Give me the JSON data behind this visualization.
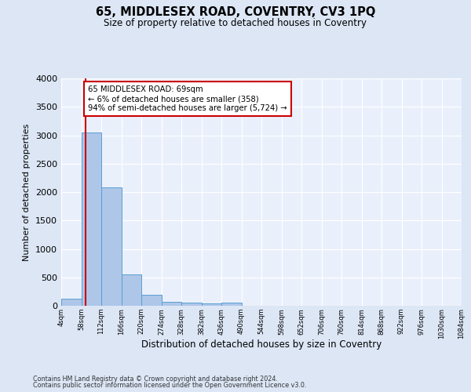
{
  "title": "65, MIDDLESEX ROAD, COVENTRY, CV3 1PQ",
  "subtitle": "Size of property relative to detached houses in Coventry",
  "xlabel": "Distribution of detached houses by size in Coventry",
  "ylabel": "Number of detached properties",
  "footer_line1": "Contains HM Land Registry data © Crown copyright and database right 2024.",
  "footer_line2": "Contains public sector information licensed under the Open Government Licence v3.0.",
  "bar_left_edges": [
    4,
    58,
    112,
    166,
    220,
    274,
    328,
    382,
    436,
    490,
    544,
    598,
    652,
    706,
    760,
    814,
    868,
    922,
    976,
    1030
  ],
  "bar_heights": [
    130,
    3050,
    2080,
    545,
    195,
    75,
    55,
    35,
    50,
    0,
    0,
    0,
    0,
    0,
    0,
    0,
    0,
    0,
    0,
    0
  ],
  "bin_width": 54,
  "bar_color": "#aec6e8",
  "bar_edge_color": "#5a9fd4",
  "property_size": 69,
  "property_line_color": "#cc0000",
  "annotation_text": "65 MIDDLESEX ROAD: 69sqm\n← 6% of detached houses are smaller (358)\n94% of semi-detached houses are larger (5,724) →",
  "annotation_box_color": "#cc0000",
  "ylim": [
    0,
    4000
  ],
  "yticks": [
    0,
    500,
    1000,
    1500,
    2000,
    2500,
    3000,
    3500,
    4000
  ],
  "xlim": [
    4,
    1084
  ],
  "xtick_labels": [
    "4sqm",
    "58sqm",
    "112sqm",
    "166sqm",
    "220sqm",
    "274sqm",
    "328sqm",
    "382sqm",
    "436sqm",
    "490sqm",
    "544sqm",
    "598sqm",
    "652sqm",
    "706sqm",
    "760sqm",
    "814sqm",
    "868sqm",
    "922sqm",
    "976sqm",
    "1030sqm",
    "1084sqm"
  ],
  "xtick_positions": [
    4,
    58,
    112,
    166,
    220,
    274,
    328,
    382,
    436,
    490,
    544,
    598,
    652,
    706,
    760,
    814,
    868,
    922,
    976,
    1030,
    1084
  ],
  "bg_color": "#dce6f5",
  "plot_bg_color": "#eaf0fb",
  "grid_color": "#ffffff"
}
